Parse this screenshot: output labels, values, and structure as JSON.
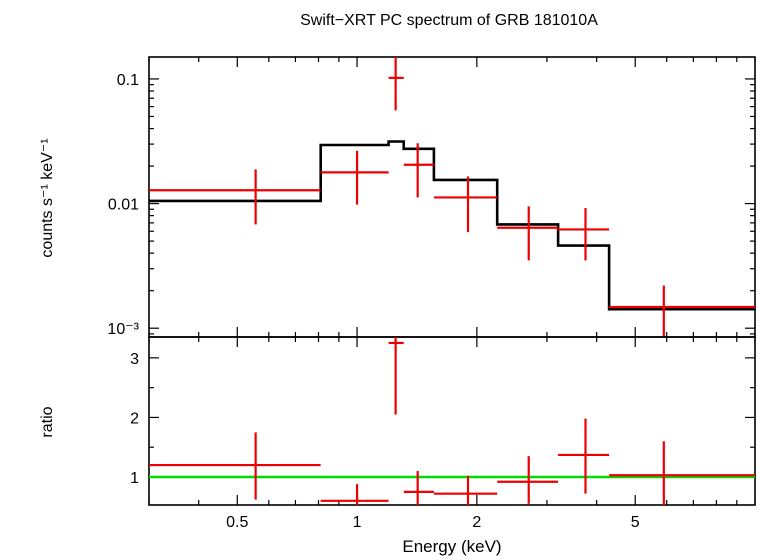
{
  "chart_data": {
    "type": "scatter",
    "title": "Swift−XRT PC spectrum of GRB 181010A",
    "xlabel": "Energy (keV)",
    "x_scale": "log",
    "xlim": [
      0.3,
      10
    ],
    "x_ticks": [
      {
        "value": 0.5,
        "label": "0.5"
      },
      {
        "value": 1,
        "label": "1"
      },
      {
        "value": 2,
        "label": "2"
      },
      {
        "value": 5,
        "label": "5"
      }
    ],
    "panels": [
      {
        "id": "spectrum",
        "ylabel": "counts s⁻¹ keV⁻¹",
        "y_scale": "log",
        "ylim": [
          0.00085,
          0.15
        ],
        "y_ticks": [
          {
            "value": 0.1,
            "label": "0.1"
          },
          {
            "value": 0.01,
            "label": "0.01"
          },
          {
            "value": 0.001,
            "label": "10⁻³"
          }
        ],
        "data": {
          "name": "data",
          "color": "#ee0000",
          "points": [
            {
              "x": 0.556,
              "x_lo": 0.3,
              "x_hi": 0.81,
              "y": 0.0128,
              "y_lo": 0.0068,
              "y_hi": 0.0188
            },
            {
              "x": 1.0,
              "x_lo": 0.81,
              "x_hi": 1.2,
              "y": 0.0178,
              "y_lo": 0.0098,
              "y_hi": 0.0265
            },
            {
              "x": 1.25,
              "x_lo": 1.2,
              "x_hi": 1.31,
              "y": 0.102,
              "y_lo": 0.056,
              "y_hi": 0.15
            },
            {
              "x": 1.42,
              "x_lo": 1.31,
              "x_hi": 1.56,
              "y": 0.0205,
              "y_lo": 0.0112,
              "y_hi": 0.0305
            },
            {
              "x": 1.9,
              "x_lo": 1.56,
              "x_hi": 2.25,
              "y": 0.0112,
              "y_lo": 0.0059,
              "y_hi": 0.0165
            },
            {
              "x": 2.7,
              "x_lo": 2.25,
              "x_hi": 3.2,
              "y": 0.0064,
              "y_lo": 0.0035,
              "y_hi": 0.0095
            },
            {
              "x": 3.75,
              "x_lo": 3.2,
              "x_hi": 4.3,
              "y": 0.0062,
              "y_lo": 0.0035,
              "y_hi": 0.0092
            },
            {
              "x": 5.9,
              "x_lo": 4.3,
              "x_hi": 10,
              "y": 0.00148,
              "y_lo": 0.00085,
              "y_hi": 0.0022
            }
          ]
        },
        "model": {
          "name": "model",
          "color": "#000000",
          "steps": [
            {
              "x_lo": 0.3,
              "x_hi": 0.81,
              "y": 0.0105
            },
            {
              "x_lo": 0.81,
              "x_hi": 1.2,
              "y": 0.0295
            },
            {
              "x_lo": 1.2,
              "x_hi": 1.31,
              "y": 0.0315
            },
            {
              "x_lo": 1.31,
              "x_hi": 1.56,
              "y": 0.0275
            },
            {
              "x_lo": 1.56,
              "x_hi": 2.25,
              "y": 0.0155
            },
            {
              "x_lo": 2.25,
              "x_hi": 3.2,
              "y": 0.0068
            },
            {
              "x_lo": 3.2,
              "x_hi": 4.3,
              "y": 0.0046
            },
            {
              "x_lo": 4.3,
              "x_hi": 10,
              "y": 0.00142
            }
          ]
        }
      },
      {
        "id": "ratio",
        "ylabel": "ratio",
        "y_scale": "linear",
        "ylim": [
          0.53,
          3.35
        ],
        "y_ticks": [
          {
            "value": 1,
            "label": "1"
          },
          {
            "value": 2,
            "label": "2"
          },
          {
            "value": 3,
            "label": "3"
          }
        ],
        "reference_line": {
          "y": 1,
          "color": "#00dd00"
        },
        "data": {
          "color": "#ee0000",
          "points": [
            {
              "x": 0.556,
              "x_lo": 0.3,
              "x_hi": 0.81,
              "y": 1.2,
              "y_lo": 0.62,
              "y_hi": 1.75
            },
            {
              "x": 1.0,
              "x_lo": 0.81,
              "x_hi": 1.2,
              "y": 0.6,
              "y_lo": 0.53,
              "y_hi": 0.88
            },
            {
              "x": 1.25,
              "x_lo": 1.2,
              "x_hi": 1.31,
              "y": 3.25,
              "y_lo": 2.05,
              "y_hi": 3.35
            },
            {
              "x": 1.42,
              "x_lo": 1.31,
              "x_hi": 1.56,
              "y": 0.75,
              "y_lo": 0.53,
              "y_hi": 1.1
            },
            {
              "x": 1.9,
              "x_lo": 1.56,
              "x_hi": 2.25,
              "y": 0.72,
              "y_lo": 0.53,
              "y_hi": 1.02
            },
            {
              "x": 2.7,
              "x_lo": 2.25,
              "x_hi": 3.2,
              "y": 0.92,
              "y_lo": 0.55,
              "y_hi": 1.35
            },
            {
              "x": 3.75,
              "x_lo": 3.2,
              "x_hi": 4.3,
              "y": 1.37,
              "y_lo": 0.72,
              "y_hi": 1.98
            },
            {
              "x": 5.9,
              "x_lo": 4.3,
              "x_hi": 10,
              "y": 1.03,
              "y_lo": 0.53,
              "y_hi": 1.6
            }
          ]
        }
      }
    ]
  }
}
